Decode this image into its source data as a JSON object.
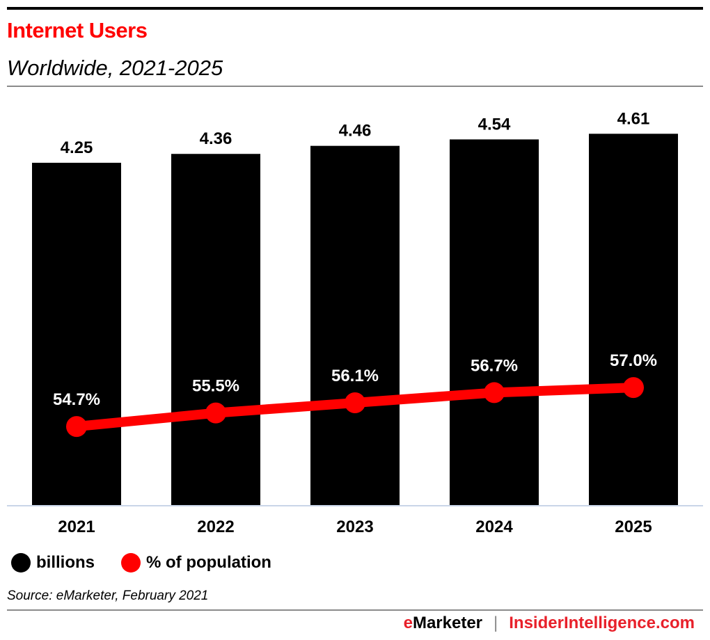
{
  "header": {
    "title": "Internet Users",
    "subtitle": "Worldwide, 2021-2025"
  },
  "colors": {
    "title": "#ff0000",
    "bars": "#000000",
    "line": "#ff0000",
    "axis": "#c9d5e8",
    "rule": "#8a8a8a",
    "line_label": "#ffffff",
    "bar_label": "#000000"
  },
  "chart_data": {
    "type": "bar",
    "title": "Internet Users",
    "subtitle": "Worldwide, 2021-2025",
    "xlabel": "",
    "ylabel": "",
    "categories": [
      "2021",
      "2022",
      "2023",
      "2024",
      "2025"
    ],
    "series": [
      {
        "name": "billions",
        "type": "bar",
        "axis": "primary",
        "values": [
          4.25,
          4.36,
          4.46,
          4.54,
          4.61
        ],
        "labels": [
          "4.25",
          "4.36",
          "4.46",
          "4.54",
          "4.61"
        ]
      },
      {
        "name": "% of population",
        "type": "line",
        "axis": "secondary",
        "values": [
          54.7,
          55.5,
          56.1,
          56.7,
          57.0
        ],
        "labels": [
          "54.7%",
          "55.5%",
          "56.1%",
          "56.7%",
          "57.0%"
        ]
      }
    ],
    "ylim": [
      0,
      5.2
    ],
    "y2lim": [
      50.06,
      74.8
    ],
    "grid": false,
    "legend_position": "bottom-left"
  },
  "legend": [
    {
      "label": "billions",
      "color": "#000000"
    },
    {
      "label": "% of population",
      "color": "#ff0000"
    }
  ],
  "source": "Source: eMarketer, February 2021",
  "footer": {
    "brand_prefix": "e",
    "brand_rest": "Marketer",
    "separator": "|",
    "site": "InsiderIntelligence.com"
  }
}
